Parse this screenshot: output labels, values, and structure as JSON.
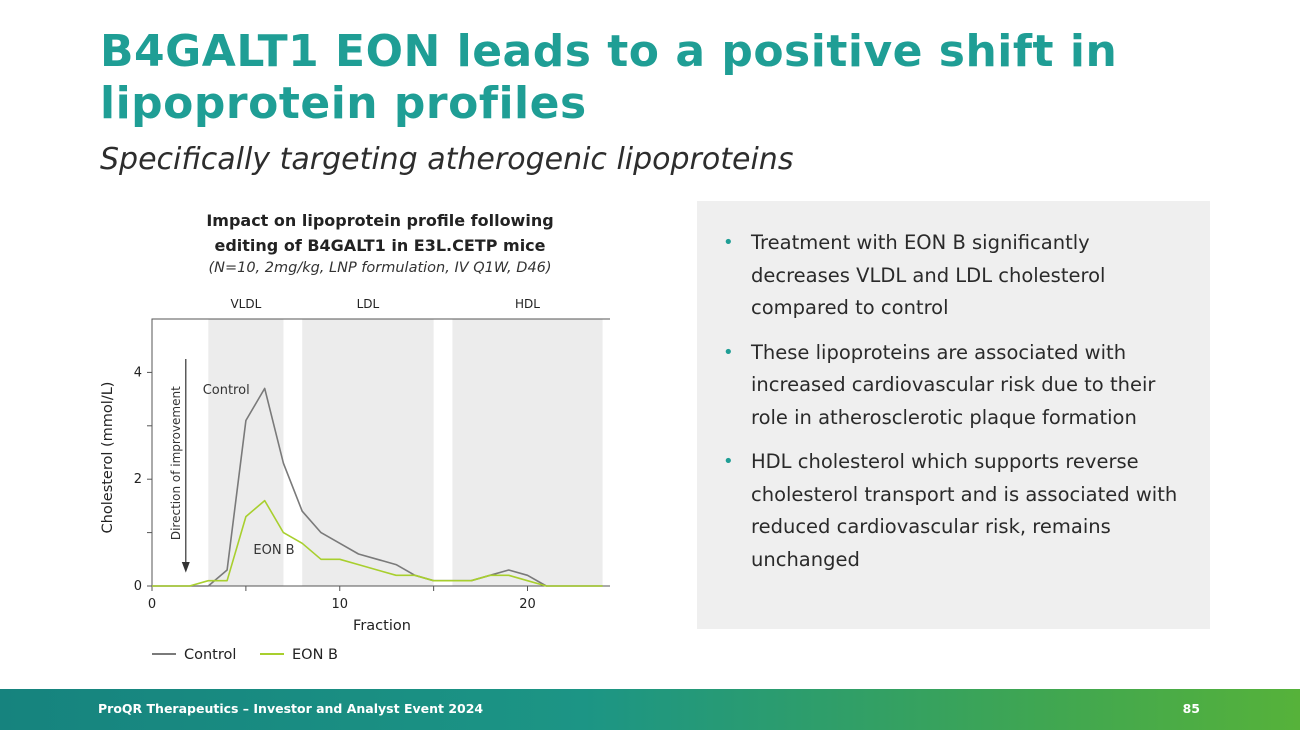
{
  "slide": {
    "title": "B4GALT1 EON leads to a positive shift in lipoprotein profiles",
    "subtitle": "Specifically targeting atherogenic lipoproteins"
  },
  "chart_heading": {
    "line1": "Impact on lipoprotein profile following",
    "line2": "editing of B4GALT1 in E3L.CETP mice",
    "note": "(N=10, 2mg/kg, LNP formulation, IV Q1W, D46)"
  },
  "chart_data": {
    "type": "line",
    "xlabel": "Fraction",
    "ylabel": "Cholesterol (mmol/L)",
    "xlim": [
      0,
      24.5
    ],
    "ylim": [
      0,
      5
    ],
    "xticks": [
      0,
      10,
      20
    ],
    "yticks": [
      0,
      2,
      4
    ],
    "regions": [
      {
        "name": "VLDL",
        "x0": 3,
        "x1": 7
      },
      {
        "name": "LDL",
        "x0": 8,
        "x1": 15
      },
      {
        "name": "HDL",
        "x0": 16,
        "x1": 24
      }
    ],
    "direction_label": "Direction of improvement",
    "legend_position": "bottom-left",
    "series": [
      {
        "name": "Control",
        "color": "#7a7a7a",
        "x": [
          0,
          1,
          2,
          3,
          4,
          5,
          6,
          7,
          8,
          9,
          10,
          11,
          12,
          13,
          14,
          15,
          16,
          17,
          18,
          19,
          20,
          21,
          22,
          23,
          24
        ],
        "y": [
          0,
          0,
          0,
          0,
          0.3,
          3.1,
          3.7,
          2.3,
          1.4,
          1.0,
          0.8,
          0.6,
          0.5,
          0.4,
          0.2,
          0.1,
          0.1,
          0.1,
          0.2,
          0.3,
          0.2,
          0,
          0,
          0,
          0
        ]
      },
      {
        "name": "EON B",
        "color": "#a8cf2e",
        "x": [
          0,
          1,
          2,
          3,
          4,
          5,
          6,
          7,
          8,
          9,
          10,
          11,
          12,
          13,
          14,
          15,
          16,
          17,
          18,
          19,
          20,
          21,
          22,
          23,
          24
        ],
        "y": [
          0,
          0,
          0,
          0.1,
          0.1,
          1.3,
          1.6,
          1.0,
          0.8,
          0.5,
          0.5,
          0.4,
          0.3,
          0.2,
          0.2,
          0.1,
          0.1,
          0.1,
          0.2,
          0.2,
          0.1,
          0,
          0,
          0,
          0
        ]
      }
    ],
    "annotations": [
      {
        "text": "Control",
        "series": "Control"
      },
      {
        "text": "EON B",
        "series": "EON B"
      }
    ]
  },
  "bullets": [
    "Treatment with EON B significantly decreases VLDL and LDL cholesterol compared to control",
    "These lipoproteins are associated with increased cardiovascular risk due to their role in atherosclerotic plaque formation",
    "HDL cholesterol which supports reverse cholesterol transport and is associated with reduced cardiovascular risk, remains unchanged"
  ],
  "footer": {
    "text": "ProQR Therapeutics – Investor and Analyst Event 2024",
    "page": "85"
  }
}
